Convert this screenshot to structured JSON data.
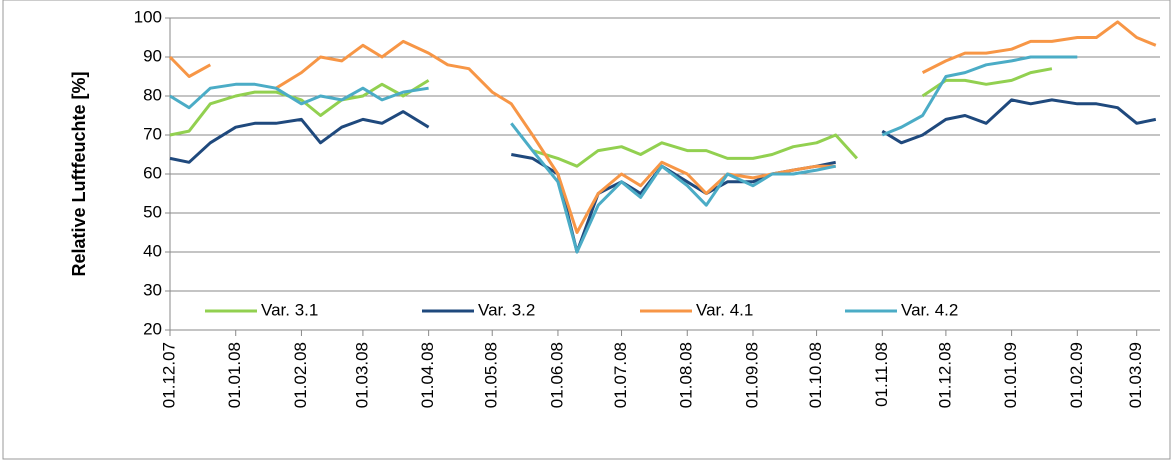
{
  "chart_data": {
    "type": "line",
    "ylabel": "Relative Luftfeuchte [%]",
    "x": [
      "2007-12-01",
      "2007-12-10",
      "2007-12-20",
      "2008-01-01",
      "2008-01-10",
      "2008-01-20",
      "2008-02-01",
      "2008-02-10",
      "2008-02-20",
      "2008-03-01",
      "2008-03-10",
      "2008-03-20",
      "2008-04-01",
      "2008-04-10",
      "2008-04-20",
      "2008-05-01",
      "2008-05-10",
      "2008-05-20",
      "2008-06-01",
      "2008-06-10",
      "2008-06-20",
      "2008-07-01",
      "2008-07-10",
      "2008-07-20",
      "2008-08-01",
      "2008-08-10",
      "2008-08-20",
      "2008-09-01",
      "2008-09-10",
      "2008-09-20",
      "2008-10-01",
      "2008-10-10",
      "2008-10-20",
      "2008-11-01",
      "2008-11-10",
      "2008-11-20",
      "2008-12-01",
      "2008-12-10",
      "2008-12-20",
      "2009-01-01",
      "2009-01-10",
      "2009-01-20",
      "2009-02-01",
      "2009-02-10",
      "2009-02-20",
      "2009-03-01",
      "2009-03-10"
    ],
    "series": [
      {
        "name": "Var. 3.1",
        "color": "#92d050",
        "values": [
          70,
          71,
          78,
          80,
          81,
          81,
          79,
          75,
          79,
          80,
          83,
          80,
          84,
          null,
          null,
          null,
          null,
          66,
          64,
          62,
          66,
          67,
          65,
          68,
          66,
          66,
          64,
          64,
          65,
          67,
          68,
          70,
          64,
          null,
          null,
          80,
          84,
          84,
          83,
          84,
          86,
          87,
          null,
          null,
          null,
          null,
          null
        ]
      },
      {
        "name": "Var. 3.2",
        "color": "#1f497d",
        "values": [
          64,
          63,
          68,
          72,
          73,
          73,
          74,
          68,
          72,
          74,
          73,
          76,
          72,
          null,
          null,
          null,
          65,
          64,
          60,
          40,
          55,
          58,
          55,
          62,
          58,
          55,
          58,
          58,
          60,
          61,
          62,
          63,
          null,
          71,
          68,
          70,
          74,
          75,
          73,
          79,
          78,
          79,
          78,
          78,
          77,
          73,
          74
        ]
      },
      {
        "name": "Var. 4.1",
        "color": "#f79646",
        "values": [
          90,
          85,
          88,
          null,
          null,
          82,
          86,
          90,
          89,
          93,
          90,
          94,
          91,
          88,
          87,
          81,
          78,
          70,
          60,
          45,
          55,
          60,
          57,
          63,
          60,
          55,
          60,
          59,
          60,
          61,
          62,
          62,
          null,
          null,
          null,
          86,
          89,
          91,
          91,
          92,
          94,
          94,
          95,
          95,
          99,
          95,
          93
        ]
      },
      {
        "name": "Var. 4.2",
        "color": "#4bacc6",
        "values": [
          80,
          77,
          82,
          83,
          83,
          82,
          78,
          80,
          79,
          82,
          79,
          81,
          82,
          null,
          null,
          null,
          73,
          66,
          58,
          40,
          52,
          58,
          54,
          62,
          57,
          52,
          60,
          57,
          60,
          60,
          61,
          62,
          null,
          70,
          72,
          75,
          85,
          86,
          88,
          89,
          90,
          90,
          90,
          null,
          null,
          null,
          null
        ]
      }
    ],
    "xlim": [
      "2007-12-01",
      "2009-03-12"
    ],
    "xticks": [
      {
        "value": "2007-12-01",
        "label": "01.12.07"
      },
      {
        "value": "2008-01-01",
        "label": "01.01.08"
      },
      {
        "value": "2008-02-01",
        "label": "01.02.08"
      },
      {
        "value": "2008-03-01",
        "label": "01.03.08"
      },
      {
        "value": "2008-04-01",
        "label": "01.04.08"
      },
      {
        "value": "2008-05-01",
        "label": "01.05.08"
      },
      {
        "value": "2008-06-01",
        "label": "01.06.08"
      },
      {
        "value": "2008-07-01",
        "label": "01.07.08"
      },
      {
        "value": "2008-08-01",
        "label": "01.08.08"
      },
      {
        "value": "2008-09-01",
        "label": "01.09.08"
      },
      {
        "value": "2008-10-01",
        "label": "01.10.08"
      },
      {
        "value": "2008-11-01",
        "label": "01.11.08"
      },
      {
        "value": "2008-12-01",
        "label": "01.12.08"
      },
      {
        "value": "2009-01-01",
        "label": "01.01.09"
      },
      {
        "value": "2009-02-01",
        "label": "01.02.09"
      },
      {
        "value": "2009-03-01",
        "label": "01.03.09"
      }
    ],
    "ylim": [
      20,
      100
    ],
    "yticks": [
      20,
      30,
      40,
      50,
      60,
      70,
      80,
      90,
      100
    ],
    "grid": true,
    "legend": "bottom"
  }
}
